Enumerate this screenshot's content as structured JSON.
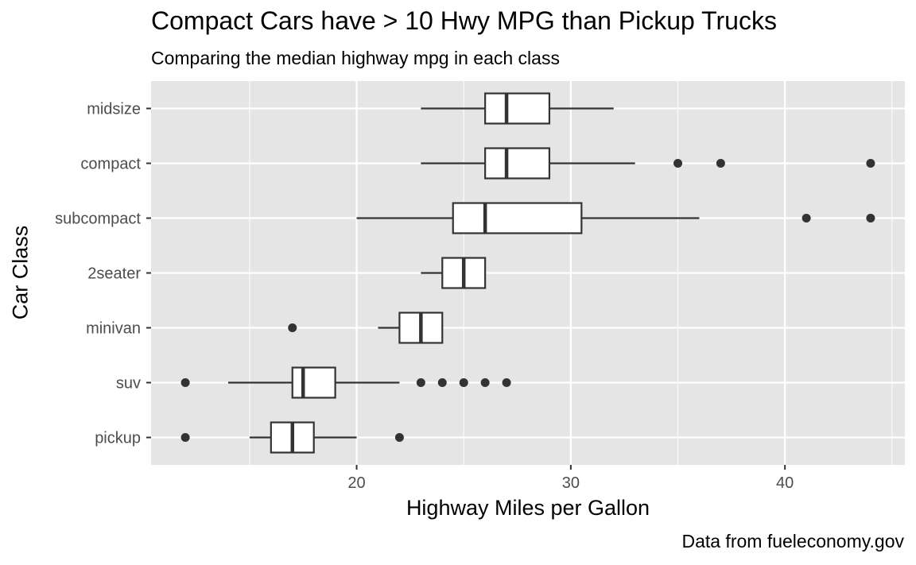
{
  "chart_data": {
    "type": "boxplot",
    "orientation": "horizontal",
    "title": "Compact Cars have > 10 Hwy MPG than Pickup Trucks",
    "subtitle": "Comparing the median highway mpg in each class",
    "caption": "Data from fueleconomy.gov",
    "xlabel": "Highway Miles per Gallon",
    "ylabel": "Car Class",
    "xlim": [
      10.4,
      45.6
    ],
    "x_ticks": [
      20,
      30,
      40
    ],
    "grid": true,
    "legend": "none",
    "colors": {
      "panel_background": "#e5e5e5",
      "grid_line": "#ffffff",
      "box_fill": "#ffffff",
      "box_stroke": "#333333",
      "outlier": "#333333"
    },
    "categories": [
      "midsize",
      "compact",
      "subcompact",
      "2seater",
      "minivan",
      "suv",
      "pickup"
    ],
    "boxes": [
      {
        "category": "midsize",
        "whisker_low": 23,
        "q1": 26,
        "median": 27,
        "q3": 29,
        "whisker_high": 32,
        "outliers": []
      },
      {
        "category": "compact",
        "whisker_low": 23,
        "q1": 26,
        "median": 27,
        "q3": 29,
        "whisker_high": 33,
        "outliers": [
          35,
          37,
          44
        ]
      },
      {
        "category": "subcompact",
        "whisker_low": 20,
        "q1": 24.5,
        "median": 26,
        "q3": 30.5,
        "whisker_high": 36,
        "outliers": [
          41,
          44
        ]
      },
      {
        "category": "2seater",
        "whisker_low": 23,
        "q1": 24,
        "median": 25,
        "q3": 26,
        "whisker_high": 26,
        "outliers": []
      },
      {
        "category": "minivan",
        "whisker_low": 21,
        "q1": 22,
        "median": 23,
        "q3": 24,
        "whisker_high": 24,
        "outliers": [
          17
        ]
      },
      {
        "category": "suv",
        "whisker_low": 14,
        "q1": 17,
        "median": 17.5,
        "q3": 19,
        "whisker_high": 22,
        "outliers": [
          12,
          23,
          24,
          25,
          26,
          27
        ]
      },
      {
        "category": "pickup",
        "whisker_low": 15,
        "q1": 16,
        "median": 17,
        "q3": 18,
        "whisker_high": 20,
        "outliers": [
          12,
          22
        ]
      }
    ]
  }
}
